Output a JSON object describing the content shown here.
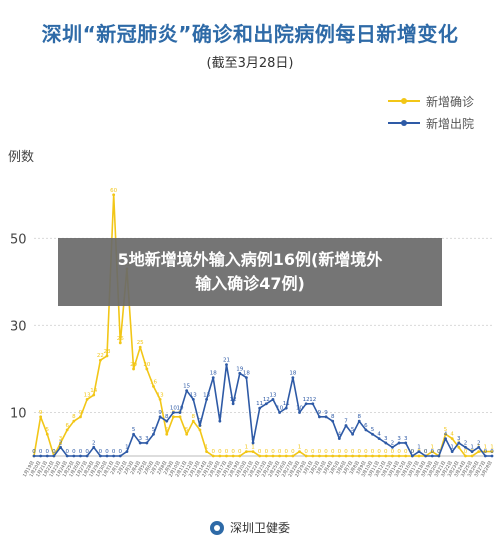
{
  "header": {
    "title": "深圳“新冠肺炎”确诊和出院病例每日新增变化",
    "subtitle": "(截至3月28日)"
  },
  "legend": {
    "confirmed": "新增确诊",
    "discharged": "新增出院"
  },
  "banner": {
    "line1": "5地新增境外输入病例16例(新增境外",
    "line2": "输入确诊47例)"
  },
  "footer": {
    "source": "深圳卫健委"
  },
  "colors": {
    "confirmed": "#f2c617",
    "discharged": "#2e5aa6",
    "title": "#2e6aa7"
  },
  "chart_data": {
    "type": "line",
    "ylabel": "例数",
    "ylim": [
      0,
      68
    ],
    "yticks": [
      10,
      30,
      50
    ],
    "categories": [
      "1月19日",
      "1月20日",
      "1月21日",
      "1月22日",
      "1月23日",
      "1月24日",
      "1月25日",
      "1月26日",
      "1月27日",
      "1月28日",
      "1月29日",
      "1月30日",
      "1月31日",
      "2月1日",
      "2月2日",
      "2月3日",
      "2月4日",
      "2月5日",
      "2月6日",
      "2月7日",
      "2月8日",
      "2月9日",
      "2月10日",
      "2月11日",
      "2月12日",
      "2月13日",
      "2月14日",
      "2月15日",
      "2月16日",
      "2月17日",
      "2月18日",
      "2月19日",
      "2月20日",
      "2月21日",
      "2月22日",
      "2月23日",
      "2月24日",
      "2月25日",
      "2月26日",
      "2月27日",
      "2月28日",
      "2月29日",
      "3月1日",
      "3月2日",
      "3月3日",
      "3月4日",
      "3月5日",
      "3月6日",
      "3月7日",
      "3月8日",
      "3月9日",
      "3月10日",
      "3月11日",
      "3月12日",
      "3月13日",
      "3月14日",
      "3月15日",
      "3月16日",
      "3月17日",
      "3月18日",
      "3月19日",
      "3月20日",
      "3月21日",
      "3月22日",
      "3月23日",
      "3月24日",
      "3月25日",
      "3月26日",
      "3月27日",
      "3月28日"
    ],
    "series": [
      {
        "name": "新增确诊",
        "values": [
          0,
          9,
          5,
          0,
          3,
          6,
          8,
          9,
          13,
          14,
          22,
          23,
          60,
          26,
          43,
          20,
          25,
          20,
          16,
          13,
          5,
          9,
          9,
          5,
          8,
          6,
          1,
          0,
          0,
          0,
          0,
          0,
          1,
          1,
          0,
          0,
          0,
          0,
          0,
          0,
          1,
          0,
          0,
          0,
          0,
          0,
          0,
          0,
          0,
          0,
          0,
          0,
          0,
          0,
          0,
          0,
          0,
          0,
          0,
          0,
          1,
          0,
          5,
          4,
          2,
          0,
          0,
          1,
          1,
          1
        ]
      },
      {
        "name": "新增出院",
        "values": [
          0,
          0,
          0,
          0,
          2,
          0,
          0,
          0,
          0,
          2,
          0,
          0,
          0,
          0,
          1,
          5,
          3,
          3,
          5,
          9,
          8,
          10,
          10,
          15,
          13,
          7,
          13,
          18,
          8,
          21,
          12,
          19,
          18,
          3,
          11,
          12,
          13,
          10,
          11,
          18,
          10,
          12,
          12,
          9,
          9,
          8,
          4,
          7,
          5,
          8,
          6,
          5,
          4,
          3,
          2,
          3,
          3,
          0,
          1,
          0,
          0,
          0,
          4,
          1,
          3,
          2,
          1,
          2,
          0,
          0
        ]
      }
    ]
  }
}
